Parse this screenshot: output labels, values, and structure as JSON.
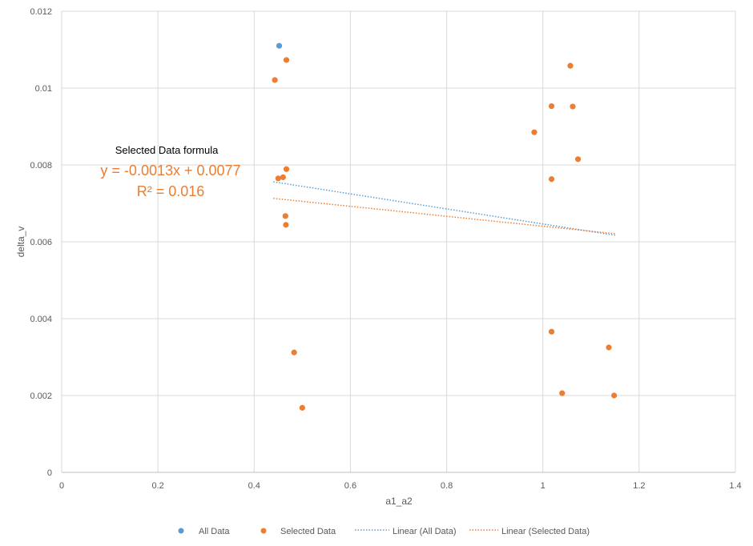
{
  "chart_data": {
    "type": "scatter",
    "xlabel": "a1_a2",
    "ylabel": "delta_v",
    "xlim": [
      0,
      1.4
    ],
    "ylim": [
      0,
      0.012
    ],
    "x_ticks": [
      0,
      0.2,
      0.4,
      0.6,
      0.8,
      1,
      1.2,
      1.4
    ],
    "x_tick_labels": [
      "0",
      "0.2",
      "0.4",
      "0.6",
      "0.8",
      "1",
      "1.2",
      "1.4"
    ],
    "y_ticks": [
      0,
      0.002,
      0.004,
      0.006,
      0.008,
      0.01,
      0.012
    ],
    "y_tick_labels": [
      "0",
      "0.002",
      "0.004",
      "0.006",
      "0.008",
      "0.01",
      "0.012"
    ],
    "grid": true,
    "legend_position": "bottom",
    "series": [
      {
        "name": "All Data",
        "color": "#5B9BD5",
        "points": [
          {
            "x": 0.452,
            "y": 0.0111
          }
        ]
      },
      {
        "name": "Selected Data",
        "color": "#ED7D31",
        "points": [
          {
            "x": 0.467,
            "y": 0.01073
          },
          {
            "x": 0.443,
            "y": 0.01021
          },
          {
            "x": 0.467,
            "y": 0.00789
          },
          {
            "x": 0.45,
            "y": 0.00765
          },
          {
            "x": 0.46,
            "y": 0.00768
          },
          {
            "x": 0.465,
            "y": 0.00667
          },
          {
            "x": 0.466,
            "y": 0.00644
          },
          {
            "x": 0.483,
            "y": 0.00312
          },
          {
            "x": 0.5,
            "y": 0.00168
          },
          {
            "x": 1.057,
            "y": 0.01058
          },
          {
            "x": 1.018,
            "y": 0.00953
          },
          {
            "x": 1.062,
            "y": 0.00952
          },
          {
            "x": 0.982,
            "y": 0.00885
          },
          {
            "x": 1.073,
            "y": 0.00815
          },
          {
            "x": 1.018,
            "y": 0.00763
          },
          {
            "x": 1.018,
            "y": 0.00366
          },
          {
            "x": 1.137,
            "y": 0.00325
          },
          {
            "x": 1.04,
            "y": 0.00206
          },
          {
            "x": 1.148,
            "y": 0.002
          }
        ]
      }
    ],
    "trendlines": [
      {
        "name": "Linear (All Data)",
        "color": "#5B9BD5",
        "x": [
          0.44,
          1.15
        ],
        "y": [
          0.00756,
          0.00617
        ]
      },
      {
        "name": "Linear (Selected Data)",
        "color": "#ED7D31",
        "x": [
          0.44,
          1.15
        ],
        "y": [
          0.00713,
          0.00621
        ]
      }
    ],
    "annotation": {
      "title": "Selected Data formula",
      "equation": "y = -0.0013x + 0.0077",
      "r_squared": "R² = 0.016",
      "color": "#ED7D31"
    }
  }
}
